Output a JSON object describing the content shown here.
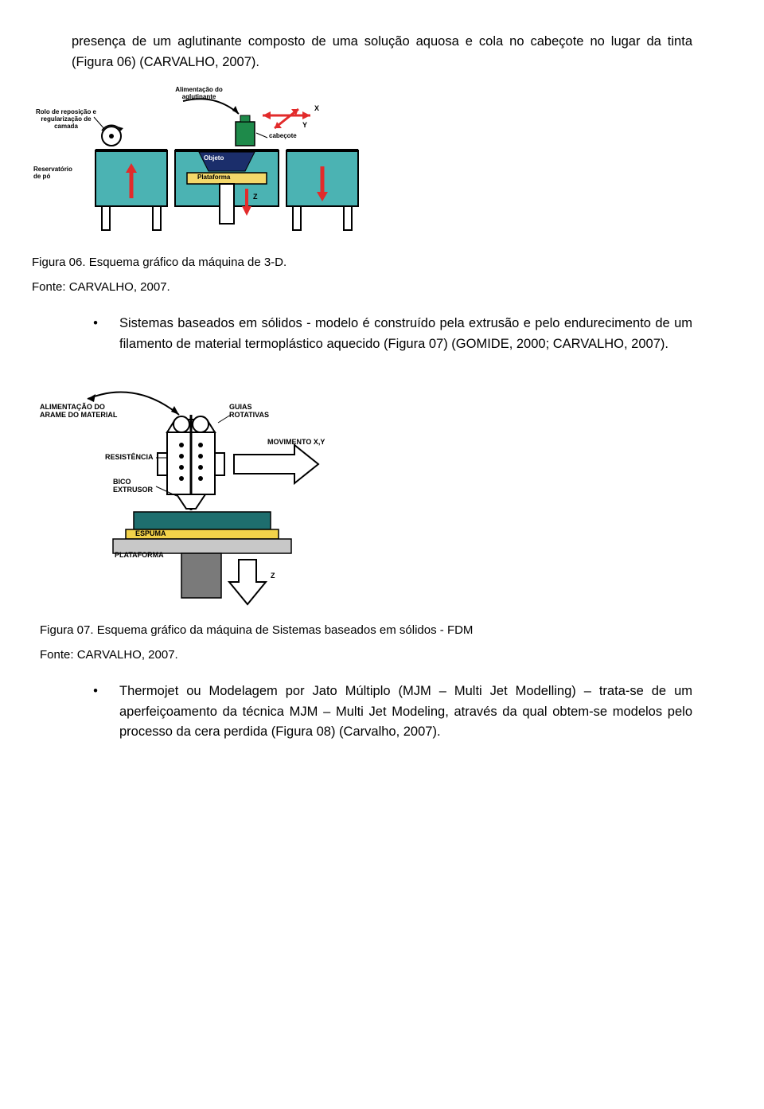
{
  "intro_para": "presença de um aglutinante composto de uma solução aquosa e cola no cabeçote no lugar da tinta (Figura 06) (CARVALHO, 2007).",
  "fig06": {
    "caption_line1": "Figura 06. Esquema gráfico da máquina de 3-D.",
    "caption_line2": "Fonte: CARVALHO, 2007.",
    "labels": {
      "rolo": "Rolo de reposição e\nregularização de camada",
      "alimentacao": "Alimentação do\naglutinante",
      "x": "X",
      "y": "Y",
      "cabecote": "cabeçote",
      "objeto": "Objeto",
      "plataforma": "Plataforma",
      "reservatorio": "Reservatório\nde pó",
      "z": "Z"
    },
    "colors": {
      "teal": "#4bb3b3",
      "tank_border": "#000000",
      "powder": "#4bb3b3",
      "object_navy": "#1b2e6b",
      "platform_yellow": "#f4d86a",
      "head_green": "#1e8a4a",
      "red": "#e22b2b",
      "bg": "#ffffff"
    }
  },
  "bullet1": "Sistemas baseados em sólidos - modelo é construído pela extrusão e pelo endurecimento de um filamento de material termoplástico aquecido (Figura 07) (GOMIDE, 2000; CARVALHO, 2007).",
  "fig07": {
    "caption_line1": "Figura 07. Esquema gráfico da máquina de Sistemas baseados em sólidos - FDM",
    "caption_line2": "Fonte: CARVALHO, 2007.",
    "labels": {
      "alimentacao": "ALIMENTAÇÃO DO\nARAME DO MATERIAL",
      "guias": "GUIAS\nROTATIVAS",
      "movimento": "MOVIMENTO X,Y",
      "resistencia": "RESISTÊNCIA",
      "bico": "BICO\nEXTRUSOR",
      "espuma": "ESPUMA",
      "plataforma": "PLATAFORMA",
      "z": "Z"
    },
    "colors": {
      "gray": "#7a7a7a",
      "dark_gray": "#5b5b5b",
      "teal": "#1e6e6e",
      "yellow": "#f2d24a",
      "white": "#ffffff",
      "black": "#000000",
      "dotted": "#000000"
    }
  },
  "bullet2": "Thermojet ou Modelagem por Jato Múltiplo (MJM – Multi Jet Modelling) – trata-se de um aperfeiçoamento da técnica MJM – Multi Jet Modeling, através da qual obtem-se modelos pelo processo da cera perdida (Figura 08) (Carvalho, 2007)."
}
